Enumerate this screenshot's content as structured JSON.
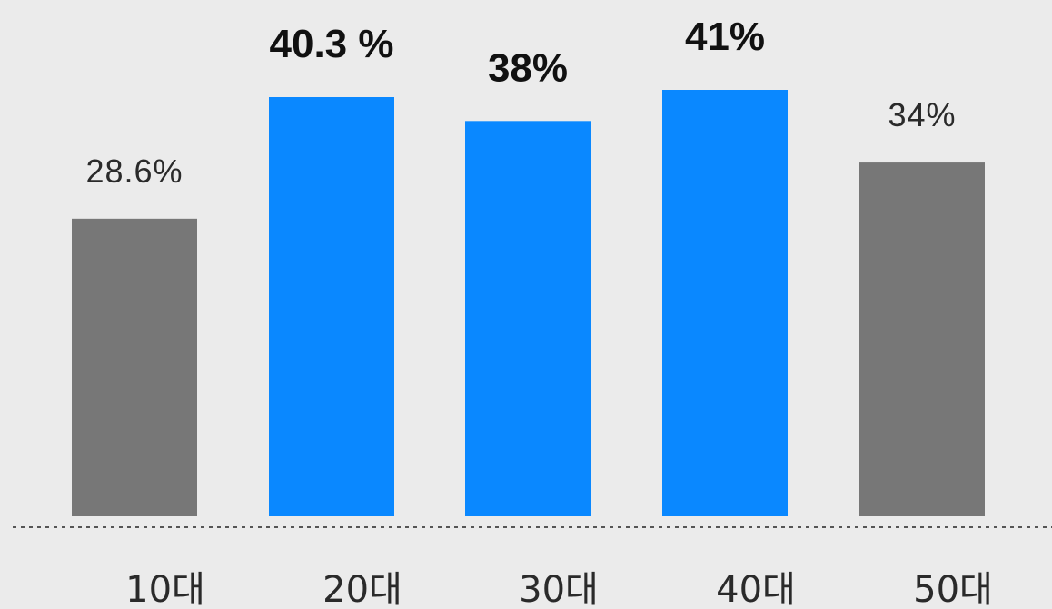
{
  "colors": {
    "background": "#ebebeb",
    "highlight": "#0a88ff",
    "default": "#777777",
    "baseline": "#555555"
  },
  "chart_data": {
    "type": "bar",
    "categories": [
      "10대",
      "20대",
      "30대",
      "40대",
      "50대"
    ],
    "values": [
      28.6,
      40.3,
      38,
      41,
      34
    ],
    "value_labels": [
      "28.6%",
      "40.3 %",
      "38%",
      "41%",
      "34%"
    ],
    "highlighted": [
      false,
      true,
      true,
      true,
      false
    ],
    "ylim": [
      0,
      41
    ],
    "grid": false,
    "legend": "none",
    "title": "",
    "xlabel": "",
    "ylabel": ""
  }
}
